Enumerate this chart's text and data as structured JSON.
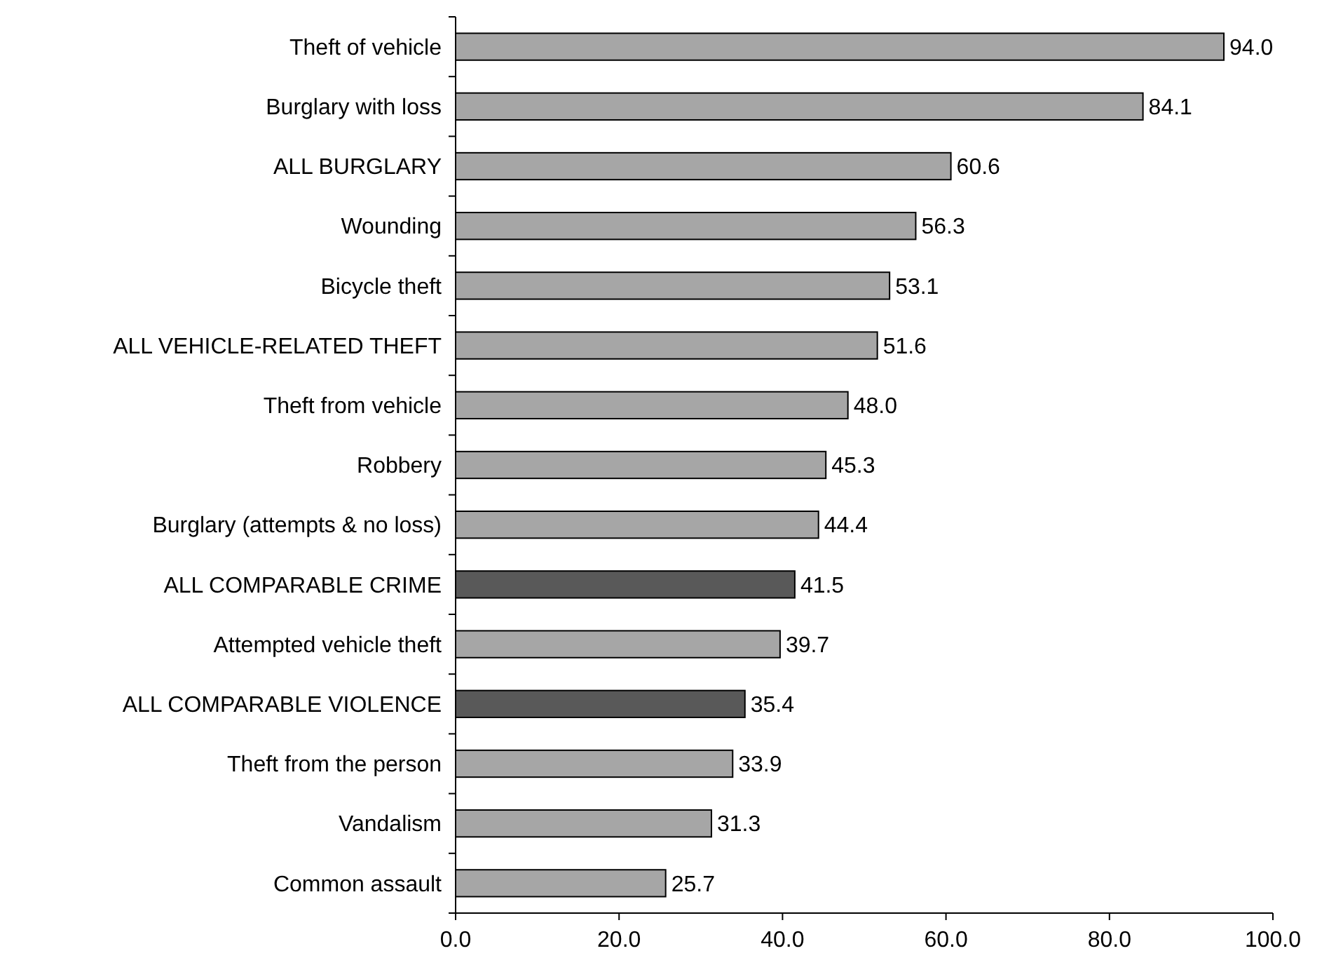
{
  "chart_data": {
    "type": "bar",
    "orientation": "horizontal",
    "categories": [
      "Theft of vehicle",
      "Burglary with loss",
      "ALL BURGLARY",
      "Wounding",
      "Bicycle theft",
      "ALL VEHICLE-RELATED THEFT",
      "Theft from vehicle",
      "Robbery",
      "Burglary (attempts & no loss)",
      "ALL COMPARABLE CRIME",
      "Attempted vehicle theft",
      "ALL COMPARABLE VIOLENCE",
      "Theft from the person",
      "Vandalism",
      "Common assault"
    ],
    "values": [
      94.0,
      84.1,
      60.6,
      56.3,
      53.1,
      51.6,
      48.0,
      45.3,
      44.4,
      41.5,
      39.7,
      35.4,
      33.9,
      31.3,
      25.7
    ],
    "value_labels": [
      "94.0",
      "84.1",
      "60.6",
      "56.3",
      "53.1",
      "51.6",
      "48.0",
      "45.3",
      "44.4",
      "41.5",
      "39.7",
      "35.4",
      "33.9",
      "31.3",
      "25.7"
    ],
    "colors": [
      "#a6a6a6",
      "#a6a6a6",
      "#a6a6a6",
      "#a6a6a6",
      "#a6a6a6",
      "#a6a6a6",
      "#a6a6a6",
      "#a6a6a6",
      "#a6a6a6",
      "#595959",
      "#a6a6a6",
      "#595959",
      "#a6a6a6",
      "#a6a6a6",
      "#a6a6a6"
    ],
    "xlim": [
      0,
      100
    ],
    "xticks": [
      {
        "value": 0,
        "label": "0.0"
      },
      {
        "value": 20,
        "label": "20.0"
      },
      {
        "value": 40,
        "label": "40.0"
      },
      {
        "value": 60,
        "label": "60.0"
      },
      {
        "value": 80,
        "label": "80.0"
      },
      {
        "value": 100,
        "label": "100.0"
      }
    ]
  }
}
